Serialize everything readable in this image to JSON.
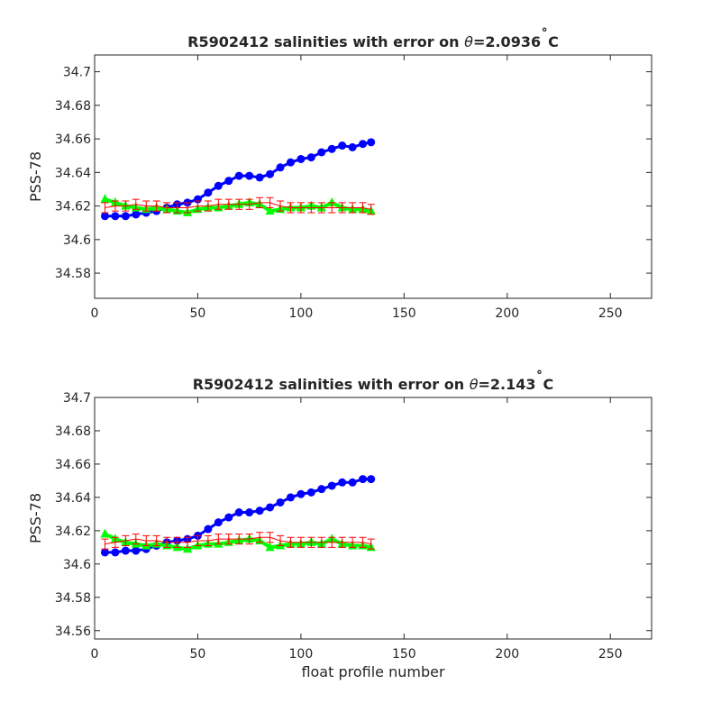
{
  "chart_data": [
    {
      "type": "scatter",
      "title": "R5902412 salinities with error on θ=2.0936˚C",
      "title_parts": {
        "prefix": "R5902412 salinities with error on ",
        "theta": "θ",
        "value": "=2.0936",
        "unit_deg": "˚",
        "unit": "C"
      },
      "xlabel": "",
      "ylabel": "PSS-78",
      "xlim": [
        0,
        270
      ],
      "ylim": [
        34.565,
        34.71
      ],
      "x_ticks": [
        0,
        50,
        100,
        150,
        200,
        250
      ],
      "x_tick_labels": [
        "0",
        "50",
        "100",
        "150",
        "200",
        "250"
      ],
      "y_ticks": [
        34.58,
        34.6,
        34.62,
        34.64,
        34.66,
        34.68,
        34.7
      ],
      "y_tick_labels": [
        "34.58",
        "34.6",
        "34.62",
        "34.64",
        "34.66",
        "34.68",
        "34.7"
      ],
      "grid": false,
      "series": [
        {
          "color": "#0000ff",
          "marker": "circle",
          "x": [
            5,
            10,
            15,
            20,
            25,
            30,
            35,
            40,
            45,
            50,
            55,
            60,
            65,
            70,
            75,
            80,
            85,
            90,
            95,
            100,
            105,
            110,
            115,
            120,
            125,
            130,
            134
          ],
          "y": [
            34.614,
            34.614,
            34.614,
            34.615,
            34.616,
            34.617,
            34.619,
            34.621,
            34.622,
            34.624,
            34.628,
            34.632,
            34.635,
            34.638,
            34.638,
            34.637,
            34.639,
            34.643,
            34.646,
            34.648,
            34.649,
            34.652,
            34.654,
            34.656,
            34.655,
            34.657,
            34.658
          ]
        },
        {
          "color": "#00ff00",
          "marker": "triangle",
          "x": [
            5,
            10,
            15,
            20,
            25,
            30,
            35,
            40,
            45,
            50,
            55,
            60,
            65,
            70,
            75,
            80,
            85,
            90,
            95,
            100,
            105,
            110,
            115,
            120,
            125,
            130,
            134
          ],
          "y": [
            34.624,
            34.622,
            34.62,
            34.619,
            34.618,
            34.619,
            34.618,
            34.617,
            34.616,
            34.618,
            34.619,
            34.619,
            34.62,
            34.621,
            34.622,
            34.621,
            34.617,
            34.618,
            34.619,
            34.619,
            34.62,
            34.619,
            34.622,
            34.619,
            34.618,
            34.618,
            34.617
          ]
        },
        {
          "color": "#ff0000",
          "marker": "errorbar",
          "x": [
            5,
            10,
            15,
            20,
            25,
            30,
            35,
            40,
            45,
            50,
            55,
            60,
            65,
            70,
            75,
            80,
            85,
            90,
            95,
            100,
            105,
            110,
            115,
            120,
            125,
            130,
            134
          ],
          "y": [
            34.619,
            34.62,
            34.62,
            34.621,
            34.62,
            34.62,
            34.619,
            34.619,
            34.619,
            34.62,
            34.62,
            34.621,
            34.621,
            34.621,
            34.621,
            34.622,
            34.622,
            34.62,
            34.619,
            34.619,
            34.619,
            34.619,
            34.619,
            34.619,
            34.619,
            34.619,
            34.618
          ],
          "err": [
            0.003,
            0.003,
            0.003,
            0.003,
            0.003,
            0.003,
            0.003,
            0.003,
            0.003,
            0.003,
            0.003,
            0.003,
            0.003,
            0.003,
            0.003,
            0.003,
            0.003,
            0.003,
            0.003,
            0.003,
            0.003,
            0.003,
            0.003,
            0.003,
            0.003,
            0.003,
            0.003
          ]
        }
      ]
    },
    {
      "type": "scatter",
      "title": "R5902412 salinities with error on θ=2.143˚C",
      "title_parts": {
        "prefix": "R5902412 salinities with error on ",
        "theta": "θ",
        "value": "=2.143",
        "unit_deg": "˚",
        "unit": "C"
      },
      "xlabel": "float profile number",
      "ylabel": "PSS-78",
      "xlim": [
        0,
        270
      ],
      "ylim": [
        34.555,
        34.7
      ],
      "x_ticks": [
        0,
        50,
        100,
        150,
        200,
        250
      ],
      "x_tick_labels": [
        "0",
        "50",
        "100",
        "150",
        "200",
        "250"
      ],
      "y_ticks": [
        34.56,
        34.58,
        34.6,
        34.62,
        34.64,
        34.66,
        34.68,
        34.7
      ],
      "y_tick_labels": [
        "34.56",
        "34.58",
        "34.6",
        "34.62",
        "34.64",
        "34.66",
        "34.68",
        "34.7"
      ],
      "grid": false,
      "series": [
        {
          "color": "#0000ff",
          "marker": "circle",
          "x": [
            5,
            10,
            15,
            20,
            25,
            30,
            35,
            40,
            45,
            50,
            55,
            60,
            65,
            70,
            75,
            80,
            85,
            90,
            95,
            100,
            105,
            110,
            115,
            120,
            125,
            130,
            134
          ],
          "y": [
            34.607,
            34.607,
            34.608,
            34.608,
            34.609,
            34.611,
            34.613,
            34.614,
            34.615,
            34.617,
            34.621,
            34.625,
            34.628,
            34.631,
            34.631,
            34.632,
            34.634,
            34.637,
            34.64,
            34.642,
            34.643,
            34.645,
            34.647,
            34.649,
            34.649,
            34.651,
            34.651
          ]
        },
        {
          "color": "#00ff00",
          "marker": "triangle",
          "x": [
            5,
            10,
            15,
            20,
            25,
            30,
            35,
            40,
            45,
            50,
            55,
            60,
            65,
            70,
            75,
            80,
            85,
            90,
            95,
            100,
            105,
            110,
            115,
            120,
            125,
            130,
            134
          ],
          "y": [
            34.618,
            34.615,
            34.613,
            34.612,
            34.611,
            34.612,
            34.611,
            34.61,
            34.609,
            34.611,
            34.612,
            34.612,
            34.613,
            34.614,
            34.615,
            34.614,
            34.61,
            34.611,
            34.612,
            34.612,
            34.613,
            34.612,
            34.615,
            34.612,
            34.611,
            34.611,
            34.61
          ]
        },
        {
          "color": "#ff0000",
          "marker": "errorbar",
          "x": [
            5,
            10,
            15,
            20,
            25,
            30,
            35,
            40,
            45,
            50,
            55,
            60,
            65,
            70,
            75,
            80,
            85,
            90,
            95,
            100,
            105,
            110,
            115,
            120,
            125,
            130,
            134
          ],
          "y": [
            34.612,
            34.613,
            34.614,
            34.615,
            34.614,
            34.614,
            34.613,
            34.613,
            34.613,
            34.614,
            34.614,
            34.615,
            34.615,
            34.615,
            34.615,
            34.616,
            34.616,
            34.614,
            34.613,
            34.613,
            34.613,
            34.613,
            34.613,
            34.613,
            34.613,
            34.613,
            34.612
          ],
          "err": [
            0.003,
            0.003,
            0.003,
            0.003,
            0.003,
            0.003,
            0.003,
            0.003,
            0.003,
            0.003,
            0.003,
            0.003,
            0.003,
            0.003,
            0.003,
            0.003,
            0.003,
            0.003,
            0.003,
            0.003,
            0.003,
            0.003,
            0.003,
            0.003,
            0.003,
            0.003,
            0.003
          ]
        }
      ]
    }
  ]
}
